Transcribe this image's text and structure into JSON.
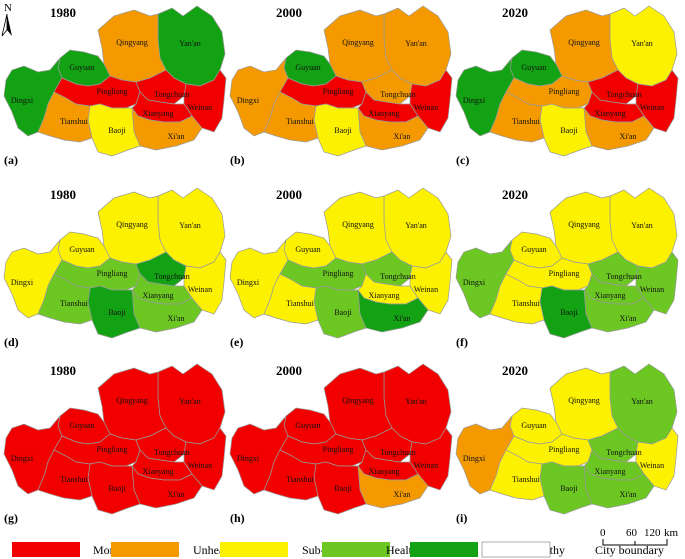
{
  "colors": {
    "Morbidity": "#f20000",
    "Unhealthy": "#f49a00",
    "Sub-healthy": "#fbf100",
    "Healthy": "#6cc723",
    "Very healthy": "#13a213",
    "boundary": "#9a9a9a"
  },
  "north_label": "N",
  "panels": [
    {
      "id": "a",
      "label": "(a)",
      "year": "1980",
      "classes": {
        "Yan'an": "Very healthy",
        "Qingyang": "Unhealthy",
        "Guyuan": "Very healthy",
        "Dingxi": "Very healthy",
        "Pingliang": "Morbidity",
        "Tongchuan": "Morbidity",
        "Weinan": "Morbidity",
        "Xianyang": "Morbidity",
        "Xi'an": "Unhealthy",
        "Baoji": "Sub-healthy",
        "Tianshui": "Unhealthy"
      }
    },
    {
      "id": "b",
      "label": "(b)",
      "year": "2000",
      "classes": {
        "Yan'an": "Unhealthy",
        "Qingyang": "Unhealthy",
        "Guyuan": "Very healthy",
        "Dingxi": "Unhealthy",
        "Pingliang": "Morbidity",
        "Tongchuan": "Unhealthy",
        "Weinan": "Morbidity",
        "Xianyang": "Morbidity",
        "Xi'an": "Unhealthy",
        "Baoji": "Sub-healthy",
        "Tianshui": "Unhealthy"
      }
    },
    {
      "id": "c",
      "label": "(c)",
      "year": "2020",
      "classes": {
        "Yan'an": "Sub-healthy",
        "Qingyang": "Unhealthy",
        "Guyuan": "Very healthy",
        "Dingxi": "Very healthy",
        "Pingliang": "Unhealthy",
        "Tongchuan": "Morbidity",
        "Weinan": "Morbidity",
        "Xianyang": "Morbidity",
        "Xi'an": "Unhealthy",
        "Baoji": "Sub-healthy",
        "Tianshui": "Unhealthy"
      }
    },
    {
      "id": "d",
      "label": "(d)",
      "year": "1980",
      "classes": {
        "Yan'an": "Sub-healthy",
        "Qingyang": "Sub-healthy",
        "Guyuan": "Sub-healthy",
        "Dingxi": "Sub-healthy",
        "Pingliang": "Healthy",
        "Tongchuan": "Very healthy",
        "Weinan": "Sub-healthy",
        "Xianyang": "Healthy",
        "Xi'an": "Healthy",
        "Baoji": "Very healthy",
        "Tianshui": "Healthy"
      }
    },
    {
      "id": "e",
      "label": "(e)",
      "year": "2000",
      "classes": {
        "Yan'an": "Sub-healthy",
        "Qingyang": "Sub-healthy",
        "Guyuan": "Sub-healthy",
        "Dingxi": "Sub-healthy",
        "Pingliang": "Healthy",
        "Tongchuan": "Healthy",
        "Weinan": "Sub-healthy",
        "Xianyang": "Sub-healthy",
        "Xi'an": "Very healthy",
        "Baoji": "Healthy",
        "Tianshui": "Sub-healthy"
      }
    },
    {
      "id": "f",
      "label": "(f)",
      "year": "2020",
      "classes": {
        "Yan'an": "Sub-healthy",
        "Qingyang": "Sub-healthy",
        "Guyuan": "Sub-healthy",
        "Dingxi": "Healthy",
        "Pingliang": "Sub-healthy",
        "Tongchuan": "Healthy",
        "Weinan": "Healthy",
        "Xianyang": "Healthy",
        "Xi'an": "Healthy",
        "Baoji": "Very healthy",
        "Tianshui": "Sub-healthy"
      }
    },
    {
      "id": "g",
      "label": "(g)",
      "year": "1980",
      "classes": {
        "Yan'an": "Morbidity",
        "Qingyang": "Morbidity",
        "Guyuan": "Morbidity",
        "Dingxi": "Morbidity",
        "Pingliang": "Morbidity",
        "Tongchuan": "Morbidity",
        "Weinan": "Morbidity",
        "Xianyang": "Morbidity",
        "Xi'an": "Morbidity",
        "Baoji": "Morbidity",
        "Tianshui": "Morbidity"
      }
    },
    {
      "id": "h",
      "label": "(h)",
      "year": "2000",
      "classes": {
        "Yan'an": "Morbidity",
        "Qingyang": "Morbidity",
        "Guyuan": "Morbidity",
        "Dingxi": "Morbidity",
        "Pingliang": "Morbidity",
        "Tongchuan": "Morbidity",
        "Weinan": "Morbidity",
        "Xianyang": "Morbidity",
        "Xi'an": "Unhealthy",
        "Baoji": "Morbidity",
        "Tianshui": "Morbidity"
      }
    },
    {
      "id": "i",
      "label": "(i)",
      "year": "2020",
      "classes": {
        "Yan'an": "Healthy",
        "Qingyang": "Sub-healthy",
        "Guyuan": "Sub-healthy",
        "Dingxi": "Unhealthy",
        "Pingliang": "Sub-healthy",
        "Tongchuan": "Healthy",
        "Weinan": "Sub-healthy",
        "Xianyang": "Healthy",
        "Xi'an": "Healthy",
        "Baoji": "Healthy",
        "Tianshui": "Sub-healthy"
      }
    }
  ],
  "legend": [
    {
      "key": "Morbidity",
      "label": "Morbidity"
    },
    {
      "key": "Unhealthy",
      "label": "Unhealthy"
    },
    {
      "key": "Sub-healthy",
      "label": "Sub-healthy"
    },
    {
      "key": "Healthy",
      "label": "Healthy"
    },
    {
      "key": "Very healthy",
      "label": "Very healthy"
    },
    {
      "key": "boundary",
      "label": "City boundary"
    }
  ],
  "scale_bar": {
    "ticks": [
      "0",
      "60",
      "120"
    ],
    "unit": "km"
  }
}
